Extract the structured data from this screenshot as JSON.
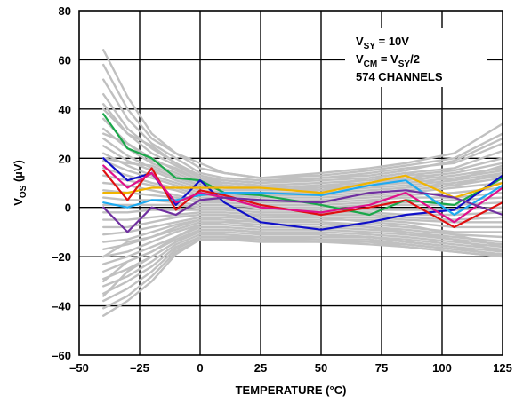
{
  "chart_data": {
    "type": "line",
    "xlabel": "TEMPERATURE (°C)",
    "ylabel": {
      "main": "V",
      "sub": "OS",
      "rest": " (µV)"
    },
    "xlim": [
      -50,
      125
    ],
    "ylim": [
      -60,
      80
    ],
    "xticks": [
      -50,
      -25,
      0,
      25,
      50,
      75,
      100,
      125
    ],
    "yticks": [
      -60,
      -40,
      -20,
      0,
      20,
      40,
      60,
      80
    ],
    "xtick_labels": [
      "–50",
      "–25",
      "0",
      "25",
      "50",
      "75",
      "100",
      "125"
    ],
    "ytick_labels": [
      "–60",
      "–40",
      "–20",
      "0",
      "20",
      "40",
      "60",
      "80"
    ],
    "grid": true,
    "annotation": {
      "line1": {
        "main": "V",
        "sub": "SY",
        "rest": " = 10V"
      },
      "line2": {
        "main": "V",
        "sub": "CM",
        "mid": " = V",
        "sub2": "SY",
        "rest": "/2"
      },
      "line3": "574 CHANNELS"
    },
    "x": [
      -40,
      -30,
      -20,
      -10,
      0,
      10,
      25,
      50,
      70,
      85,
      105,
      125
    ],
    "background_color": "#c0c0c0",
    "background_series": [
      [
        64,
        45,
        30,
        22,
        18,
        14,
        12,
        14,
        16,
        18,
        22,
        34
      ],
      [
        58,
        40,
        28,
        22,
        16,
        14,
        12,
        13,
        15,
        17,
        20,
        30
      ],
      [
        52,
        36,
        26,
        20,
        14,
        12,
        11,
        12,
        14,
        16,
        18,
        26
      ],
      [
        46,
        32,
        24,
        18,
        13,
        11,
        10,
        11,
        12,
        14,
        16,
        23
      ],
      [
        42,
        30,
        22,
        17,
        12,
        10,
        9,
        10,
        11,
        13,
        15,
        20
      ],
      [
        36,
        26,
        20,
        15,
        11,
        9,
        8,
        9,
        10,
        12,
        14,
        18
      ],
      [
        32,
        24,
        18,
        14,
        10,
        9,
        8,
        9,
        10,
        11,
        13,
        16
      ],
      [
        28,
        21,
        16,
        12,
        9,
        8,
        7,
        8,
        9,
        10,
        12,
        15
      ],
      [
        25,
        19,
        15,
        11,
        8,
        7,
        7,
        7,
        8,
        9,
        11,
        14
      ],
      [
        22,
        17,
        13,
        10,
        7,
        6,
        6,
        6,
        7,
        8,
        10,
        13
      ],
      [
        19,
        15,
        12,
        9,
        6,
        5,
        5,
        5,
        6,
        7,
        9,
        12
      ],
      [
        16,
        13,
        10,
        8,
        5,
        5,
        4,
        4,
        5,
        6,
        8,
        10
      ],
      [
        13,
        11,
        9,
        7,
        4,
        4,
        3,
        3,
        4,
        5,
        6,
        8
      ],
      [
        10,
        9,
        7,
        5,
        3,
        3,
        2,
        2,
        3,
        4,
        4,
        6
      ],
      [
        7,
        6,
        5,
        4,
        2,
        2,
        1,
        1,
        2,
        2,
        3,
        4
      ],
      [
        4,
        3,
        3,
        2,
        1,
        1,
        0,
        0,
        1,
        1,
        1,
        2
      ],
      [
        1,
        1,
        1,
        1,
        0,
        0,
        -1,
        -1,
        -1,
        -1,
        -1,
        0
      ],
      [
        -2,
        -2,
        -1,
        -1,
        -1,
        -1,
        -2,
        -2,
        -2,
        -3,
        -3,
        -2
      ],
      [
        -5,
        -5,
        -4,
        -3,
        -2,
        -2,
        -3,
        -3,
        -3,
        -4,
        -5,
        -4
      ],
      [
        -8,
        -8,
        -6,
        -4,
        -3,
        -3,
        -4,
        -4,
        -4,
        -5,
        -6,
        -6
      ],
      [
        -11,
        -10,
        -8,
        -6,
        -4,
        -4,
        -5,
        -5,
        -5,
        -6,
        -8,
        -8
      ],
      [
        -14,
        -13,
        -10,
        -7,
        -5,
        -5,
        -6,
        -6,
        -7,
        -8,
        -10,
        -10
      ],
      [
        -17,
        -15,
        -12,
        -9,
        -6,
        -6,
        -7,
        -7,
        -8,
        -9,
        -11,
        -12
      ],
      [
        -20,
        -18,
        -14,
        -10,
        -7,
        -7,
        -8,
        -8,
        -9,
        -10,
        -12,
        -14
      ],
      [
        -23,
        -20,
        -16,
        -12,
        -8,
        -8,
        -9,
        -9,
        -10,
        -11,
        -13,
        -15
      ],
      [
        -26,
        -22,
        -18,
        -13,
        -9,
        -9,
        -10,
        -10,
        -11,
        -12,
        -14,
        -16
      ],
      [
        -29,
        -25,
        -20,
        -14,
        -10,
        -10,
        -11,
        -11,
        -12,
        -13,
        -15,
        -17
      ],
      [
        -32,
        -28,
        -22,
        -15,
        -11,
        -11,
        -12,
        -12,
        -12,
        -14,
        -16,
        -18
      ],
      [
        -35,
        -30,
        -24,
        -16,
        -12,
        -12,
        -12,
        -13,
        -13,
        -15,
        -17,
        -19
      ],
      [
        -38,
        -33,
        -26,
        -17,
        -12,
        -12,
        -13,
        -13,
        -14,
        -15,
        -17,
        -19
      ],
      [
        -41,
        -36,
        -28,
        -18,
        -13,
        -13,
        -13,
        -14,
        -14,
        -16,
        -18,
        -20
      ],
      [
        -44,
        -38,
        -30,
        -19,
        -13,
        -13,
        -14,
        -14,
        -15,
        -16,
        -18,
        -20
      ],
      [
        30,
        26,
        19,
        16,
        11,
        10,
        9,
        8,
        12,
        14,
        11,
        17
      ],
      [
        20,
        18,
        17,
        13,
        9,
        8,
        8,
        7,
        10,
        12,
        9,
        14
      ],
      [
        -20,
        -14,
        -12,
        -8,
        -5,
        -4,
        -3,
        -4,
        -6,
        -7,
        -11,
        -16
      ],
      [
        -30,
        -22,
        -18,
        -12,
        -7,
        -6,
        -5,
        -6,
        -8,
        -10,
        -13,
        -18
      ],
      [
        40,
        30,
        25,
        18,
        12,
        11,
        10,
        12,
        13,
        15,
        19,
        28
      ],
      [
        -36,
        -26,
        -20,
        -14,
        -9,
        -9,
        -10,
        -11,
        -12,
        -14,
        -16,
        -20
      ]
    ],
    "highlight_series": [
      {
        "color": "#1aa84a",
        "values": [
          38,
          24,
          20,
          12,
          11,
          6,
          5,
          1,
          -3,
          3,
          1,
          12
        ]
      },
      {
        "color": "#1010c8",
        "values": [
          20,
          11,
          14,
          1,
          11,
          2,
          -6,
          -9,
          -6,
          -3,
          -1,
          13
        ]
      },
      {
        "color": "#f0b400",
        "values": [
          6,
          6,
          8,
          8,
          8,
          8,
          8,
          6,
          10,
          13,
          4,
          10
        ]
      },
      {
        "color": "#1eaaf0",
        "values": [
          2,
          0,
          3,
          3,
          5,
          6,
          6,
          5,
          9,
          11,
          -3,
          9
        ]
      },
      {
        "color": "#e01010",
        "values": [
          15,
          3,
          16,
          -1,
          7,
          5,
          1,
          -3,
          0,
          3,
          -8,
          2
        ]
      },
      {
        "color": "#e0108c",
        "values": [
          17,
          8,
          14,
          2,
          6,
          4,
          0,
          -2,
          1,
          6,
          -6,
          8
        ]
      },
      {
        "color": "#7030a0",
        "values": [
          0,
          -10,
          0,
          -3,
          3,
          4,
          3,
          2,
          6,
          7,
          4,
          -3
        ]
      }
    ]
  }
}
